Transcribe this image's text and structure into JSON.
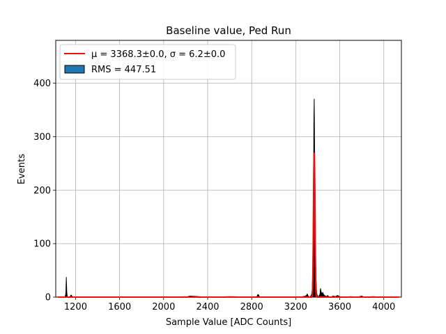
{
  "chart_data": {
    "type": "histogram",
    "title": "Baseline value, Ped Run",
    "xlabel": "Sample Value [ADC Counts]",
    "ylabel": "Events",
    "xlim": [
      1020,
      4160
    ],
    "ylim": [
      0,
      480
    ],
    "xticks": [
      1200,
      1600,
      2000,
      2400,
      2800,
      3200,
      3600,
      4000
    ],
    "yticks": [
      0,
      100,
      200,
      300,
      400
    ],
    "grid": true,
    "legend_position": "top-left",
    "legend": {
      "fit_label": "μ = 3368.3±0.0, σ = 6.2±0.0",
      "hist_label": "RMS = 447.51"
    },
    "colors": {
      "histogram": "#000000",
      "histogram_legend": "#1f77b4",
      "fit": "#e8110e",
      "grid": "#b0b0b0"
    },
    "histogram": {
      "x": [
        1040,
        1100,
        1108,
        1112,
        1116,
        1120,
        1124,
        1130,
        1150,
        1160,
        1170,
        1200,
        2000,
        2220,
        2240,
        2400,
        2600,
        2840,
        2850,
        2856,
        2862,
        2868,
        2874,
        2900,
        3200,
        3240,
        3290,
        3300,
        3305,
        3310,
        3320,
        3330,
        3340,
        3345,
        3350,
        3355,
        3360,
        3365,
        3368,
        3372,
        3376,
        3380,
        3385,
        3390,
        3396,
        3402,
        3410,
        3420,
        3425,
        3430,
        3434,
        3440,
        3445,
        3450,
        3460,
        3470,
        3480,
        3490,
        3500,
        3520,
        3540,
        3560,
        3580,
        3600,
        3640,
        3700,
        3760,
        3800,
        3820,
        3900,
        4000,
        4100,
        4140
      ],
      "y": [
        0,
        0,
        3,
        8,
        37,
        10,
        2,
        0,
        1,
        4,
        1,
        0,
        0,
        1,
        2,
        0,
        1,
        0,
        2,
        5,
        4,
        2,
        0,
        0,
        0,
        0,
        2,
        4,
        6,
        3,
        1,
        0,
        3,
        6,
        12,
        45,
        120,
        330,
        370,
        260,
        150,
        70,
        30,
        8,
        3,
        0,
        2,
        5,
        16,
        10,
        8,
        5,
        9,
        6,
        3,
        2,
        1,
        3,
        1,
        0,
        2,
        1,
        3,
        1,
        0,
        1,
        0,
        2,
        0,
        1,
        0,
        0,
        0
      ]
    },
    "fit": {
      "mu": 3368.3,
      "sigma": 6.2,
      "amplitude": 270
    }
  }
}
